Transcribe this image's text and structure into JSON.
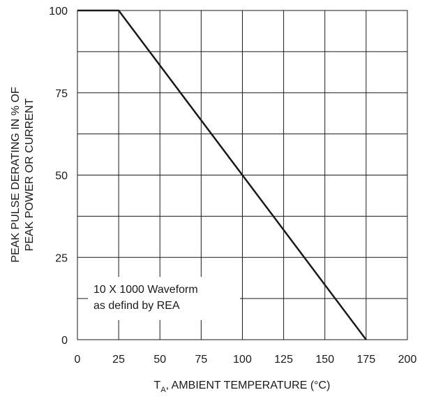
{
  "chart_data": {
    "type": "line",
    "xlabel": {
      "main": "T",
      "subscript": "A",
      "rest": ", AMBIENT TEMPERATURE (°C)"
    },
    "ylabel": {
      "line1": "PEAK PULSE DERATING IN % OF",
      "line2": "PEAK POWER OR CURRENT"
    },
    "xlim": [
      0,
      200
    ],
    "ylim": [
      0,
      100
    ],
    "x_ticks": [
      0,
      25,
      50,
      75,
      100,
      125,
      150,
      175,
      200
    ],
    "y_ticks": [
      0,
      25,
      50,
      75,
      100
    ],
    "grid": true,
    "annotation": {
      "line1": "10 X 1000 Waveform",
      "line2": "as defind by REA"
    },
    "series": [
      {
        "x": [
          0,
          25,
          175
        ],
        "y": [
          100,
          100,
          0
        ]
      }
    ],
    "colors": {
      "line": "#1a1a1a",
      "grid": "#1a1a1a",
      "background": "#ffffff"
    }
  }
}
